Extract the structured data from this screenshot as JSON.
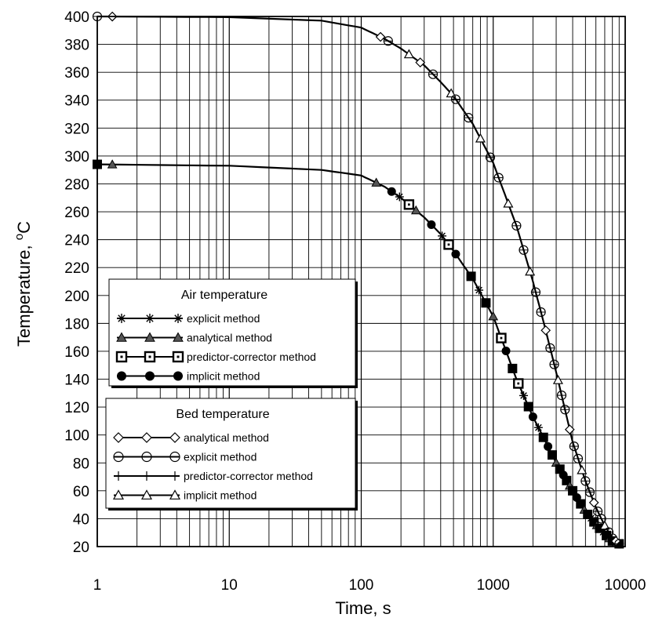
{
  "chart_data": {
    "type": "line",
    "x_scale": "log",
    "xlim": [
      1,
      10000
    ],
    "ylim": [
      20,
      400
    ],
    "grid": true,
    "xlabel": "Time, s",
    "ylabel_main": "Temperature, ",
    "ylabel_sup": "o",
    "ylabel_unit": "C",
    "x_ticks": [
      1,
      10,
      100,
      1000,
      10000
    ],
    "x_tick_labels": [
      "1",
      "10",
      "100",
      "1000",
      "10000"
    ],
    "y_ticks": [
      20,
      40,
      60,
      80,
      100,
      120,
      140,
      160,
      180,
      200,
      220,
      240,
      260,
      280,
      300,
      320,
      340,
      360,
      380,
      400
    ],
    "curves": [
      {
        "id": "bed",
        "points": [
          [
            1,
            400
          ],
          [
            10,
            399.5
          ],
          [
            50,
            397
          ],
          [
            100,
            392
          ],
          [
            150,
            384
          ],
          [
            200,
            377
          ],
          [
            300,
            365
          ],
          [
            400,
            353
          ],
          [
            500,
            343
          ],
          [
            700,
            323
          ],
          [
            1000,
            295
          ],
          [
            1500,
            250
          ],
          [
            2000,
            210
          ],
          [
            2500,
            175
          ],
          [
            3000,
            145
          ],
          [
            4000,
            95
          ],
          [
            5000,
            67
          ],
          [
            6000,
            48
          ],
          [
            7000,
            35
          ],
          [
            8000,
            26
          ],
          [
            9000,
            22
          ]
        ]
      },
      {
        "id": "air",
        "points": [
          [
            1,
            294
          ],
          [
            10,
            293
          ],
          [
            50,
            290
          ],
          [
            100,
            286
          ],
          [
            150,
            278
          ],
          [
            200,
            270
          ],
          [
            300,
            256
          ],
          [
            400,
            244
          ],
          [
            500,
            232
          ],
          [
            700,
            212
          ],
          [
            1000,
            185
          ],
          [
            1500,
            140
          ],
          [
            2000,
            113
          ],
          [
            2500,
            95
          ],
          [
            3000,
            80
          ],
          [
            4000,
            60
          ],
          [
            5000,
            45
          ],
          [
            6000,
            36
          ],
          [
            7000,
            29
          ],
          [
            8000,
            24
          ],
          [
            9000,
            22
          ]
        ]
      }
    ],
    "legends": [
      {
        "title": "Air temperature",
        "entries": [
          {
            "label": "explicit method",
            "marker": "asterisk"
          },
          {
            "label": "analytical method",
            "marker": "triangle-filled"
          },
          {
            "label": "predictor-corrector method",
            "marker": "square-dot"
          },
          {
            "label": "implicit method",
            "marker": "circle-filled"
          }
        ]
      },
      {
        "title": "Bed temperature",
        "entries": [
          {
            "label": "analytical method",
            "marker": "diamond-open"
          },
          {
            "label": "explicit method",
            "marker": "circle-open"
          },
          {
            "label": "predictor-corrector method",
            "marker": "plus"
          },
          {
            "label": "implicit method",
            "marker": "triangle-open"
          }
        ]
      }
    ]
  }
}
